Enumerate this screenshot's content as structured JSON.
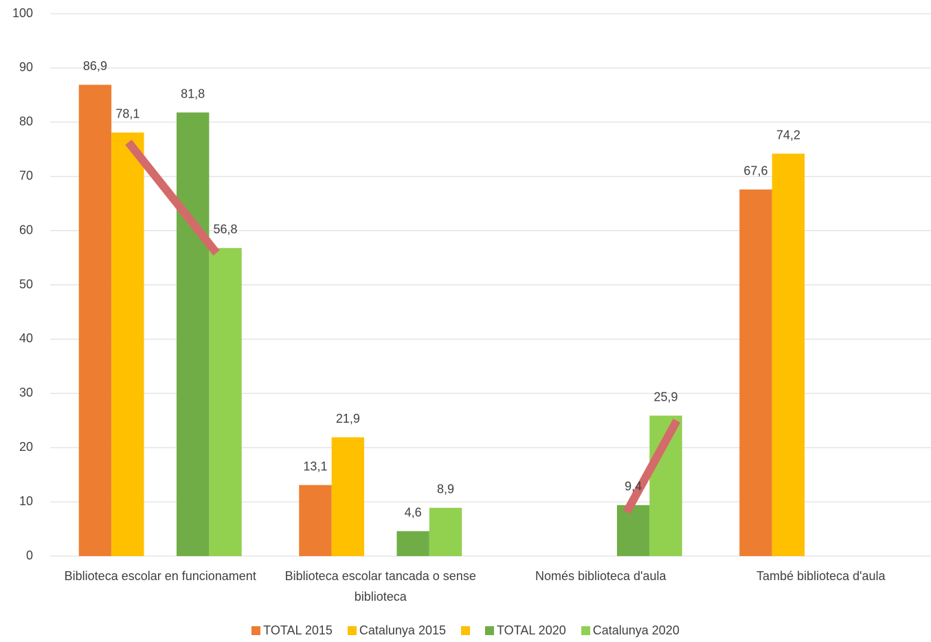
{
  "chart_data": {
    "type": "bar",
    "categories": [
      "Biblioteca escolar en funcionament",
      "Biblioteca escolar tancada o sense biblioteca",
      "Només biblioteca d'aula",
      "També biblioteca d'aula"
    ],
    "series": [
      {
        "name": "TOTAL 2015",
        "color": "#ED7D31",
        "values": [
          86.9,
          13.1,
          null,
          67.6
        ],
        "value_labels": [
          "86,9",
          "13,1",
          null,
          "67,6"
        ]
      },
      {
        "name": "Catalunya 2015",
        "color": "#FFC000",
        "values": [
          78.1,
          21.9,
          null,
          74.2
        ],
        "value_labels": [
          "78,1",
          "21,9",
          null,
          "74,2"
        ]
      },
      {
        "color": "#FFC000",
        "values": [
          null,
          null,
          null,
          null
        ]
      },
      {
        "name": "TOTAL 2020",
        "color": "#70AD47",
        "values": [
          81.8,
          4.6,
          9.4,
          null
        ],
        "value_labels": [
          "81,8",
          "4,6",
          "9,4",
          null
        ]
      },
      {
        "name": "Catalunya 2020",
        "color": "#92D050",
        "values": [
          56.8,
          8.9,
          25.9,
          null
        ],
        "value_labels": [
          "56,8",
          "8,9",
          "25,9",
          null
        ]
      }
    ],
    "ylim": [
      0,
      100
    ],
    "yticks": [
      0,
      10,
      20,
      30,
      40,
      50,
      60,
      70,
      80,
      90,
      100
    ],
    "grid": true,
    "legend": "bottom"
  }
}
